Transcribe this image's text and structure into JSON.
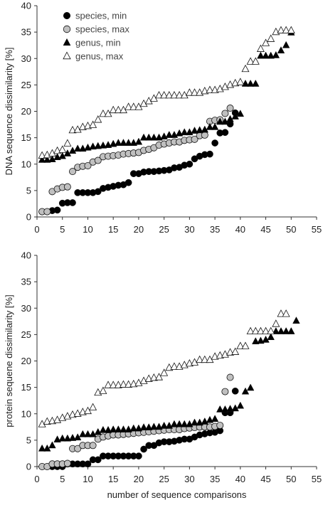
{
  "chart_data": [
    {
      "type": "scatter",
      "title": "",
      "xlabel": "",
      "ylabel": "DNA sequence dissimilarity [%]",
      "xlim": [
        0,
        55
      ],
      "ylim": [
        0,
        40
      ],
      "xticks": [
        0,
        5,
        10,
        15,
        20,
        25,
        30,
        35,
        40,
        45,
        50,
        55
      ],
      "yticks": [
        0,
        5,
        10,
        15,
        20,
        25,
        30,
        35,
        40
      ],
      "grid": false,
      "legend": "top-left",
      "series": [
        {
          "name": "species, min",
          "marker": "circle",
          "fill": "#000000",
          "x": [
            1,
            2,
            3,
            4,
            5,
            6,
            7,
            8,
            9,
            10,
            11,
            12,
            13,
            14,
            15,
            16,
            17,
            18,
            19,
            20,
            21,
            22,
            23,
            24,
            25,
            26,
            27,
            28,
            29,
            30,
            31,
            32,
            33,
            34,
            35,
            36,
            37,
            38,
            39
          ],
          "y": [
            1,
            1,
            1.2,
            1.3,
            2.6,
            2.7,
            2.7,
            4.6,
            4.6,
            4.6,
            4.6,
            4.8,
            5.4,
            5.6,
            5.8,
            6,
            6.1,
            6.5,
            8.2,
            8.2,
            8.5,
            8.6,
            8.6,
            8.7,
            8.8,
            8.9,
            9.3,
            9.4,
            9.8,
            10,
            11,
            11.5,
            11.8,
            11.9,
            14,
            15.9,
            16,
            17.6,
            19.7
          ]
        },
        {
          "name": "species, max",
          "marker": "circle",
          "fill": "#c0c0c0",
          "x": [
            1,
            2,
            3,
            4,
            5,
            6,
            7,
            8,
            9,
            10,
            11,
            12,
            13,
            14,
            15,
            16,
            17,
            18,
            19,
            20,
            21,
            22,
            23,
            24,
            25,
            26,
            27,
            28,
            29,
            30,
            31,
            32,
            33,
            34,
            35,
            36,
            37,
            38
          ],
          "y": [
            1,
            1,
            4.8,
            5.3,
            5.6,
            5.7,
            8.6,
            9.4,
            9.6,
            9.7,
            10.4,
            10.7,
            11.4,
            11.5,
            11.6,
            11.7,
            11.9,
            12,
            12.1,
            12.2,
            12.6,
            12.8,
            13.1,
            13.6,
            13.8,
            14,
            14.2,
            14.2,
            14.5,
            14.6,
            14.7,
            15.4,
            15.5,
            18.1,
            18.3,
            18.4,
            19.6,
            20.6
          ]
        },
        {
          "name": "genus, min",
          "marker": "triangle",
          "fill": "#000000",
          "x": [
            1,
            2,
            3,
            4,
            5,
            6,
            7,
            8,
            9,
            10,
            11,
            12,
            13,
            14,
            15,
            16,
            17,
            18,
            19,
            20,
            21,
            22,
            23,
            24,
            25,
            26,
            27,
            28,
            29,
            30,
            31,
            32,
            33,
            34,
            35,
            36,
            37,
            38,
            39,
            40,
            41,
            42,
            43,
            44,
            45,
            46,
            47,
            48,
            49,
            50
          ],
          "y": [
            10.8,
            10.8,
            10.9,
            11.3,
            11.5,
            12,
            12.5,
            12.9,
            12.9,
            13.1,
            13.3,
            13.4,
            13.5,
            13.6,
            13.8,
            14,
            14,
            14,
            14,
            14.2,
            15,
            15,
            15,
            15,
            15.2,
            15.5,
            15.5,
            15.8,
            16,
            16,
            16.3,
            16.4,
            16.5,
            17,
            17,
            18,
            18,
            18.5,
            19,
            19.5,
            25.2,
            25.2,
            25.2,
            30.5,
            30.5,
            30.5,
            30.6,
            31.5,
            32.5,
            34.9
          ]
        },
        {
          "name": "genus, max",
          "marker": "triangle",
          "fill": "#ffffff",
          "x": [
            1,
            2,
            3,
            4,
            5,
            6,
            7,
            8,
            9,
            10,
            11,
            12,
            13,
            14,
            15,
            16,
            17,
            18,
            19,
            20,
            21,
            22,
            23,
            24,
            25,
            26,
            27,
            28,
            29,
            30,
            31,
            32,
            33,
            34,
            35,
            36,
            37,
            38,
            39,
            40,
            41,
            42,
            43,
            44,
            45,
            46,
            47,
            48,
            49,
            50
          ],
          "y": [
            11.6,
            11.7,
            12,
            12.5,
            12.7,
            13.9,
            16.4,
            16.5,
            17,
            17.2,
            17.4,
            18.4,
            19.5,
            19.5,
            20.2,
            20.2,
            20.2,
            20.8,
            20.8,
            20.8,
            21.4,
            21.9,
            22.4,
            23,
            23,
            23,
            23,
            23,
            23,
            23.5,
            23.5,
            23.5,
            23.8,
            24,
            24,
            24.2,
            24.6,
            25,
            25.3,
            25.5,
            28,
            29.4,
            29.4,
            31.8,
            32.9,
            33.7,
            35,
            35.3,
            35.3,
            35.3
          ]
        }
      ]
    },
    {
      "type": "scatter",
      "title": "",
      "xlabel": "number of sequence comparisons",
      "ylabel": "protein sequene dissimilarity [%]",
      "xlim": [
        0,
        55
      ],
      "ylim": [
        0,
        40
      ],
      "xticks": [
        0,
        5,
        10,
        15,
        20,
        25,
        30,
        35,
        40,
        45,
        50,
        55
      ],
      "yticks": [
        0,
        5,
        10,
        15,
        20,
        25,
        30,
        35,
        40
      ],
      "grid": false,
      "series": [
        {
          "name": "species, min",
          "marker": "circle",
          "fill": "#000000",
          "x": [
            1,
            2,
            3,
            4,
            5,
            6,
            7,
            8,
            9,
            10,
            11,
            12,
            13,
            14,
            15,
            16,
            17,
            18,
            19,
            20,
            21,
            22,
            23,
            24,
            25,
            26,
            27,
            28,
            29,
            30,
            31,
            32,
            33,
            34,
            35,
            36,
            37,
            38,
            39
          ],
          "y": [
            0,
            0,
            0,
            0,
            0,
            0.5,
            0.5,
            0.5,
            0.5,
            0.5,
            1.3,
            1.3,
            2,
            2,
            2,
            2,
            2,
            2,
            2,
            2,
            3.3,
            4,
            4,
            4.5,
            4.7,
            4.7,
            4.8,
            5,
            5.2,
            5.2,
            5.6,
            6,
            6.2,
            6.4,
            6.5,
            6.8,
            10.2,
            10.2,
            14.3
          ]
        },
        {
          "name": "species, max",
          "marker": "circle",
          "fill": "#c0c0c0",
          "x": [
            1,
            2,
            3,
            4,
            5,
            6,
            7,
            8,
            9,
            10,
            11,
            12,
            13,
            14,
            15,
            16,
            17,
            18,
            19,
            20,
            21,
            22,
            23,
            24,
            25,
            26,
            27,
            28,
            29,
            30,
            31,
            32,
            33,
            34,
            35,
            36,
            37,
            38
          ],
          "y": [
            0,
            0,
            0.5,
            0.5,
            0.5,
            0.6,
            3.4,
            3.4,
            4,
            4,
            4,
            5.2,
            5.6,
            5.8,
            6,
            6,
            6.1,
            6.2,
            6.3,
            6.4,
            6.5,
            6.6,
            6.7,
            6.8,
            6.9,
            7,
            7,
            7,
            7.2,
            7.3,
            7.4,
            7.5,
            7.5,
            7.5,
            7.6,
            7.8,
            14.2,
            16.9
          ]
        },
        {
          "name": "genus, min",
          "marker": "triangle",
          "fill": "#000000",
          "x": [
            1,
            2,
            3,
            4,
            5,
            6,
            7,
            8,
            9,
            10,
            11,
            12,
            13,
            14,
            15,
            16,
            17,
            18,
            19,
            20,
            21,
            22,
            23,
            24,
            25,
            26,
            27,
            28,
            29,
            30,
            31,
            32,
            33,
            34,
            35,
            36,
            37,
            38,
            39,
            40,
            41,
            42,
            43,
            44,
            45,
            46,
            47,
            48,
            49,
            50,
            51
          ],
          "y": [
            3.4,
            3.4,
            4,
            5.1,
            5.3,
            5.3,
            5.4,
            5.5,
            6.1,
            6.1,
            6.1,
            6.5,
            6.9,
            6.9,
            7,
            7,
            7,
            7,
            7.2,
            7.2,
            7.4,
            7.4,
            7.5,
            7.5,
            7.7,
            7.7,
            8,
            8,
            8,
            8,
            8.3,
            8.3,
            8.5,
            8.8,
            9,
            10.8,
            10.8,
            10.9,
            11,
            11.5,
            14.2,
            14.9,
            23.7,
            23.8,
            24,
            24.5,
            25.6,
            25.6,
            25.6,
            25.6,
            27.6
          ]
        },
        {
          "name": "genus, max",
          "marker": "triangle",
          "fill": "#ffffff",
          "x": [
            1,
            2,
            3,
            4,
            5,
            6,
            7,
            8,
            9,
            10,
            11,
            12,
            13,
            14,
            15,
            16,
            17,
            18,
            19,
            20,
            21,
            22,
            23,
            24,
            25,
            26,
            27,
            28,
            29,
            30,
            31,
            32,
            33,
            34,
            35,
            36,
            37,
            38,
            39,
            40,
            41,
            42,
            43,
            44,
            45,
            46,
            47,
            48,
            49
          ],
          "y": [
            8,
            8.5,
            8.6,
            8.8,
            9.2,
            9.5,
            9.8,
            10,
            10.3,
            10.5,
            11.2,
            14,
            14.3,
            15.4,
            15.4,
            15.4,
            15.5,
            15.5,
            15.6,
            15.8,
            16.2,
            16.6,
            16.8,
            16.9,
            17.7,
            18.7,
            18.9,
            18.9,
            19.2,
            19.5,
            19.7,
            20.2,
            20.2,
            20.2,
            20.8,
            21,
            21.2,
            21.6,
            21.7,
            22.8,
            22.8,
            25.6,
            25.6,
            25.6,
            25.6,
            25.6,
            27,
            28.9,
            28.9
          ]
        }
      ]
    }
  ]
}
